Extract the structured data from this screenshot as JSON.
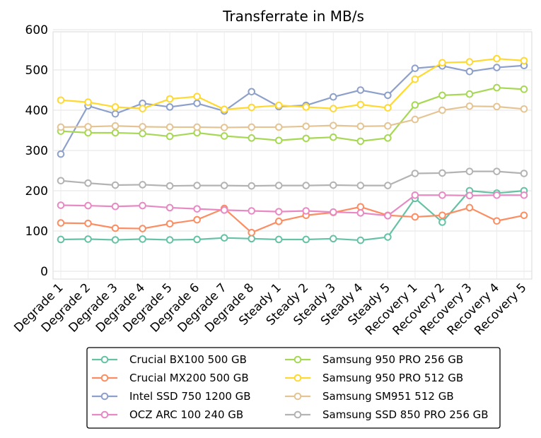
{
  "chart_data": {
    "type": "line",
    "title": "Transferrate in MB/s",
    "xlabel": "",
    "ylabel": "",
    "ylim": [
      0,
      600
    ],
    "yticks": [
      0,
      100,
      200,
      300,
      400,
      500,
      600
    ],
    "grid": true,
    "legend_position": "bottom",
    "categories": [
      "Degrade 1",
      "Degrade 2",
      "Degrade 3",
      "Degrade 4",
      "Degrade 5",
      "Degrade 6",
      "Degrade 7",
      "Degrade 8",
      "Steady 1",
      "Steady 2",
      "Steady 3",
      "Steady 4",
      "Steady 5",
      "Recovery 1",
      "Recovery 2",
      "Recovery 3",
      "Recovery 4",
      "Recovery 5"
    ],
    "series": [
      {
        "name": "Crucial BX100 500 GB",
        "color": "#66c2a5",
        "values": [
          79,
          80,
          78,
          80,
          78,
          79,
          83,
          81,
          79,
          79,
          81,
          77,
          85,
          181,
          122,
          200,
          194,
          200
        ]
      },
      {
        "name": "Crucial MX200 500 GB",
        "color": "#fc8d62",
        "values": [
          120,
          119,
          107,
          106,
          118,
          128,
          156,
          96,
          124,
          139,
          146,
          160,
          139,
          135,
          139,
          158,
          125,
          139
        ]
      },
      {
        "name": "Intel SSD 750 1200 GB",
        "color": "#8da0cb",
        "values": [
          291,
          411,
          391,
          417,
          408,
          417,
          398,
          446,
          409,
          412,
          433,
          450,
          437,
          504,
          510,
          496,
          506,
          511
        ]
      },
      {
        "name": "OCZ ARC 100 240 GB",
        "color": "#e78ac3",
        "values": [
          164,
          163,
          161,
          163,
          158,
          155,
          152,
          150,
          148,
          150,
          147,
          145,
          138,
          189,
          189,
          188,
          189,
          189
        ]
      },
      {
        "name": "Samsung 950 PRO 256 GB",
        "color": "#a6d854",
        "values": [
          348,
          344,
          344,
          342,
          335,
          344,
          336,
          331,
          325,
          330,
          333,
          323,
          331,
          413,
          437,
          440,
          456,
          452
        ]
      },
      {
        "name": "Samsung 950 PRO 512 GB",
        "color": "#ffd92f",
        "values": [
          425,
          420,
          408,
          404,
          428,
          434,
          402,
          407,
          412,
          408,
          404,
          414,
          406,
          477,
          518,
          520,
          528,
          523
        ]
      },
      {
        "name": "Samsung SM951 512 GB",
        "color": "#e5c494",
        "values": [
          358,
          359,
          361,
          359,
          358,
          358,
          357,
          358,
          358,
          360,
          362,
          360,
          361,
          377,
          400,
          410,
          409,
          403
        ]
      },
      {
        "name": "Samsung SSD 850 PRO 256 GB",
        "color": "#b3b3b3",
        "values": [
          225,
          219,
          214,
          215,
          212,
          213,
          213,
          212,
          213,
          213,
          214,
          213,
          213,
          243,
          244,
          248,
          248,
          243
        ]
      }
    ]
  }
}
